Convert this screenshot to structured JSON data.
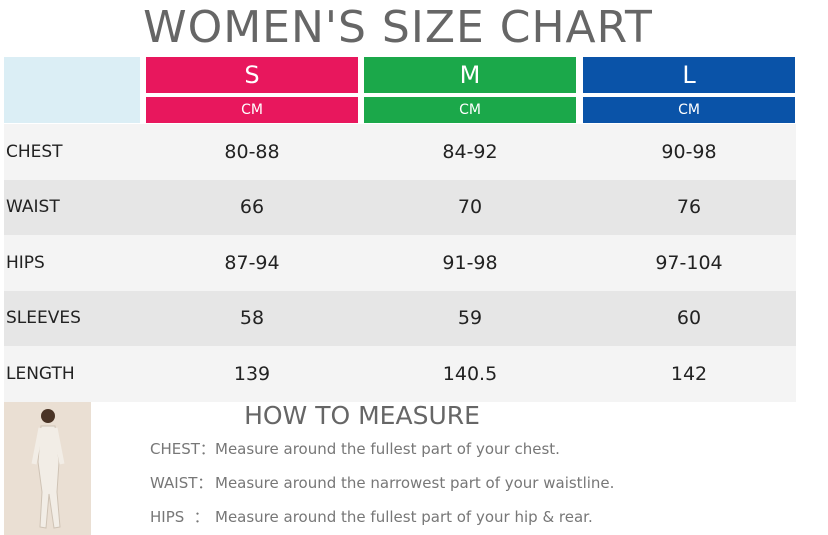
{
  "title": "WOMEN'S SIZE CHART",
  "table": {
    "sizes": [
      {
        "name": "S",
        "unit": "CM",
        "color": "#e8175d"
      },
      {
        "name": "M",
        "unit": "CM",
        "color": "#1ba84a"
      },
      {
        "name": "L",
        "unit": "CM",
        "color": "#0a53a8"
      }
    ],
    "rows": [
      [
        "CHEST",
        "80-88",
        "84-92",
        "90-98"
      ],
      [
        "WAIST",
        "66",
        "70",
        "76"
      ],
      [
        "HIPS",
        "87-94",
        "91-98",
        "97-104"
      ],
      [
        "SLEEVES",
        "58",
        "59",
        "60"
      ],
      [
        "LENGTH",
        "139",
        "140.5",
        "142"
      ]
    ]
  },
  "measure": {
    "title": "HOW TO MEASURE",
    "items": [
      {
        "label": "CHEST：",
        "text": "Measure around the fullest part of your chest."
      },
      {
        "label": "WAIST：",
        "text": "Measure around the narrowest part of your waistline."
      },
      {
        "label": "HIPS  ：",
        "text": "Measure around the fullest part of your hip & rear."
      }
    ]
  }
}
